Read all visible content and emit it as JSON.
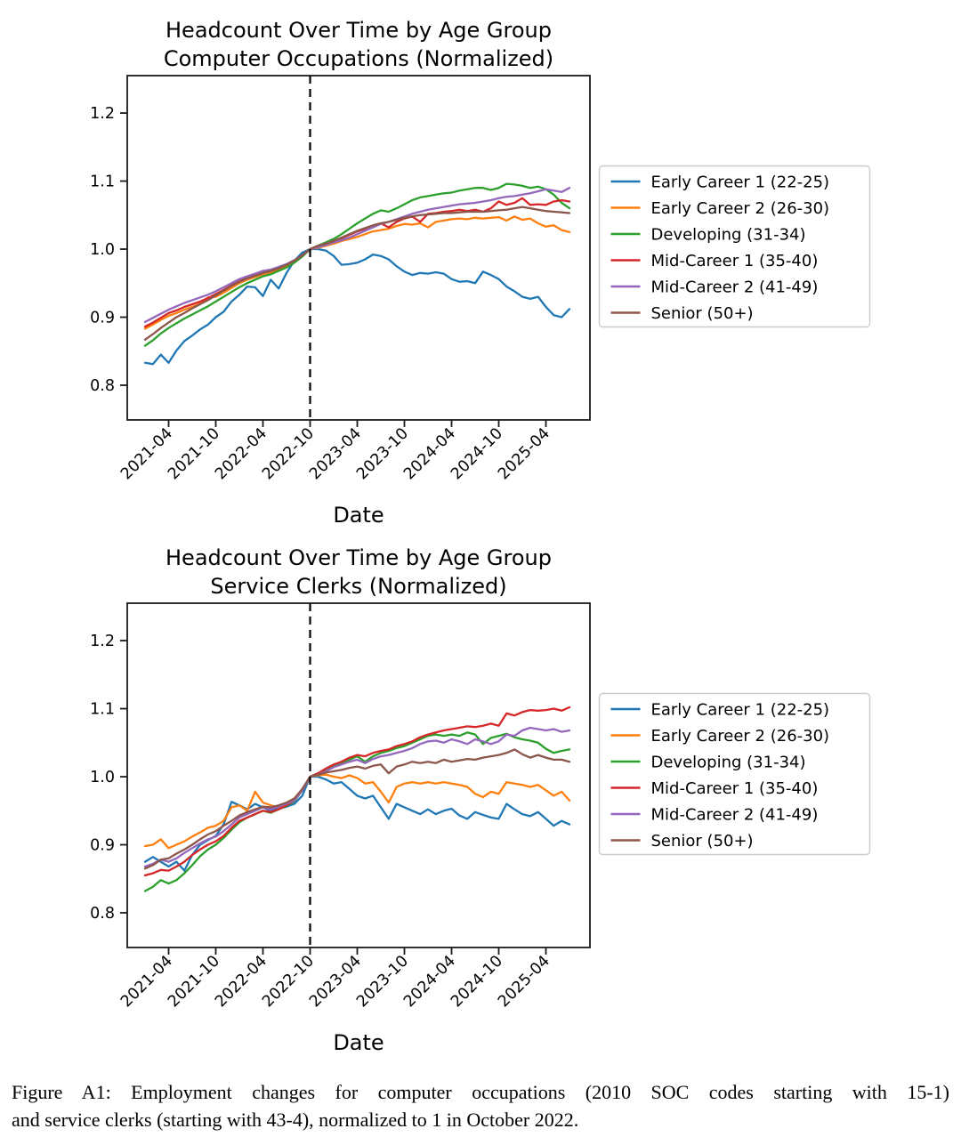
{
  "page": {
    "background": "#ffffff"
  },
  "caption": {
    "line1": "Figure A1: Employment changes for computer occupations (2010 SOC codes starting with 15-1)",
    "line2": "and service clerks (starting with 43-4), normalized to 1 in October 2022."
  },
  "chart_data": [
    {
      "type": "line",
      "title_lines": [
        "Headcount Over Time by Age Group",
        "Computer Occupations (Normalized)"
      ],
      "xlabel": "Date",
      "x_monthly_start": "2021-01",
      "x_monthly_end": "2025-07",
      "x_tick_labels": [
        "2021-04",
        "2021-10",
        "2022-04",
        "2022-10",
        "2023-04",
        "2023-10",
        "2024-04",
        "2024-10",
        "2025-04"
      ],
      "x_tick_month_indices": [
        3,
        9,
        15,
        21,
        27,
        33,
        39,
        45,
        51
      ],
      "y_ticks": [
        0.8,
        0.9,
        1.0,
        1.1,
        1.2
      ],
      "ylim": [
        0.749,
        1.255
      ],
      "grid": false,
      "legend_position": "right",
      "vline": {
        "date": "2022-10",
        "month_index": 21,
        "style": "dashed",
        "color": "#000000"
      },
      "series": [
        {
          "name": "Early Career 1 (22-25)",
          "color": "#1f77b4",
          "values": [
            0.833,
            0.831,
            0.845,
            0.833,
            0.851,
            0.865,
            0.873,
            0.882,
            0.889,
            0.9,
            0.908,
            0.923,
            0.933,
            0.945,
            0.944,
            0.931,
            0.955,
            0.942,
            0.965,
            0.983,
            0.995,
            1.0,
            1.0,
            0.998,
            0.99,
            0.977,
            0.978,
            0.98,
            0.985,
            0.992,
            0.99,
            0.985,
            0.975,
            0.967,
            0.962,
            0.965,
            0.964,
            0.966,
            0.964,
            0.956,
            0.952,
            0.953,
            0.95,
            0.967,
            0.962,
            0.956,
            0.945,
            0.938,
            0.93,
            0.927,
            0.93,
            0.915,
            0.903,
            0.9,
            0.912
          ]
        },
        {
          "name": "Early Career 2 (26-30)",
          "color": "#ff7f0e",
          "values": [
            0.883,
            0.889,
            0.896,
            0.902,
            0.906,
            0.911,
            0.915,
            0.92,
            0.929,
            0.93,
            0.936,
            0.943,
            0.95,
            0.955,
            0.959,
            0.963,
            0.966,
            0.97,
            0.975,
            0.981,
            0.99,
            1.0,
            1.002,
            1.005,
            1.008,
            1.012,
            1.015,
            1.018,
            1.022,
            1.026,
            1.028,
            1.03,
            1.034,
            1.037,
            1.036,
            1.038,
            1.032,
            1.04,
            1.042,
            1.044,
            1.045,
            1.044,
            1.046,
            1.045,
            1.046,
            1.047,
            1.042,
            1.048,
            1.043,
            1.045,
            1.038,
            1.033,
            1.035,
            1.028,
            1.025
          ]
        },
        {
          "name": "Developing (31-34)",
          "color": "#2ca02c",
          "values": [
            0.858,
            0.866,
            0.876,
            0.884,
            0.891,
            0.898,
            0.904,
            0.91,
            0.916,
            0.923,
            0.93,
            0.937,
            0.944,
            0.95,
            0.955,
            0.96,
            0.963,
            0.968,
            0.973,
            0.98,
            0.989,
            1.0,
            1.005,
            1.01,
            1.015,
            1.022,
            1.03,
            1.038,
            1.045,
            1.052,
            1.057,
            1.055,
            1.06,
            1.066,
            1.072,
            1.076,
            1.078,
            1.08,
            1.082,
            1.083,
            1.086,
            1.088,
            1.09,
            1.09,
            1.087,
            1.09,
            1.096,
            1.095,
            1.093,
            1.09,
            1.092,
            1.088,
            1.08,
            1.068,
            1.06
          ]
        },
        {
          "name": "Mid-Career 1 (35-40)",
          "color": "#d62728",
          "values": [
            0.886,
            0.892,
            0.899,
            0.906,
            0.91,
            0.915,
            0.919,
            0.923,
            0.928,
            0.934,
            0.94,
            0.947,
            0.953,
            0.958,
            0.962,
            0.966,
            0.968,
            0.972,
            0.977,
            0.983,
            0.991,
            1.0,
            1.004,
            1.008,
            1.012,
            1.016,
            1.021,
            1.026,
            1.03,
            1.035,
            1.038,
            1.032,
            1.04,
            1.045,
            1.048,
            1.04,
            1.052,
            1.053,
            1.055,
            1.056,
            1.058,
            1.056,
            1.058,
            1.055,
            1.06,
            1.07,
            1.065,
            1.068,
            1.075,
            1.065,
            1.066,
            1.065,
            1.07,
            1.072,
            1.07
          ]
        },
        {
          "name": "Mid-Career 2 (41-49)",
          "color": "#9467bd",
          "values": [
            0.893,
            0.899,
            0.905,
            0.911,
            0.916,
            0.921,
            0.925,
            0.929,
            0.933,
            0.938,
            0.944,
            0.95,
            0.956,
            0.96,
            0.964,
            0.968,
            0.97,
            0.974,
            0.978,
            0.984,
            0.991,
            1.0,
            1.003,
            1.006,
            1.01,
            1.013,
            1.017,
            1.022,
            1.027,
            1.032,
            1.037,
            1.04,
            1.044,
            1.048,
            1.052,
            1.055,
            1.058,
            1.06,
            1.062,
            1.064,
            1.066,
            1.067,
            1.068,
            1.07,
            1.072,
            1.075,
            1.077,
            1.078,
            1.08,
            1.082,
            1.085,
            1.088,
            1.086,
            1.084,
            1.09
          ]
        },
        {
          "name": "Senior (50+)",
          "color": "#8c564b",
          "values": [
            0.867,
            0.875,
            0.884,
            0.892,
            0.9,
            0.906,
            0.913,
            0.919,
            0.925,
            0.932,
            0.939,
            0.946,
            0.952,
            0.957,
            0.961,
            0.965,
            0.968,
            0.972,
            0.977,
            0.983,
            0.991,
            1.0,
            1.005,
            1.008,
            1.012,
            1.017,
            1.022,
            1.027,
            1.031,
            1.035,
            1.038,
            1.04,
            1.043,
            1.046,
            1.048,
            1.05,
            1.051,
            1.052,
            1.053,
            1.053,
            1.054,
            1.055,
            1.055,
            1.055,
            1.056,
            1.057,
            1.058,
            1.06,
            1.062,
            1.06,
            1.058,
            1.056,
            1.055,
            1.054,
            1.053
          ]
        }
      ]
    },
    {
      "type": "line",
      "title_lines": [
        "Headcount Over Time by Age Group",
        "Service Clerks (Normalized)"
      ],
      "xlabel": "Date",
      "x_monthly_start": "2021-01",
      "x_monthly_end": "2025-07",
      "x_tick_labels": [
        "2021-04",
        "2021-10",
        "2022-04",
        "2022-10",
        "2023-04",
        "2023-10",
        "2024-04",
        "2024-10",
        "2025-04"
      ],
      "x_tick_month_indices": [
        3,
        9,
        15,
        21,
        27,
        33,
        39,
        45,
        51
      ],
      "y_ticks": [
        0.8,
        0.9,
        1.0,
        1.1,
        1.2
      ],
      "ylim": [
        0.749,
        1.255
      ],
      "grid": false,
      "legend_position": "right",
      "vline": {
        "date": "2022-10",
        "month_index": 21,
        "style": "dashed",
        "color": "#000000"
      },
      "series": [
        {
          "name": "Early Career 1 (22-25)",
          "color": "#1f77b4",
          "values": [
            0.875,
            0.882,
            0.875,
            0.868,
            0.875,
            0.862,
            0.885,
            0.9,
            0.907,
            0.913,
            0.93,
            0.963,
            0.958,
            0.952,
            0.96,
            0.955,
            0.95,
            0.953,
            0.956,
            0.96,
            0.972,
            1.0,
            1.0,
            0.996,
            0.99,
            0.992,
            0.982,
            0.972,
            0.968,
            0.972,
            0.955,
            0.938,
            0.96,
            0.955,
            0.95,
            0.945,
            0.952,
            0.945,
            0.95,
            0.953,
            0.943,
            0.938,
            0.948,
            0.944,
            0.94,
            0.938,
            0.96,
            0.952,
            0.945,
            0.942,
            0.948,
            0.938,
            0.928,
            0.935,
            0.93
          ]
        },
        {
          "name": "Early Career 2 (26-30)",
          "color": "#ff7f0e",
          "values": [
            0.898,
            0.9,
            0.908,
            0.895,
            0.9,
            0.905,
            0.912,
            0.918,
            0.925,
            0.928,
            0.935,
            0.955,
            0.958,
            0.95,
            0.978,
            0.962,
            0.958,
            0.955,
            0.962,
            0.968,
            0.98,
            1.0,
            1.002,
            1.003,
            1.0,
            0.998,
            1.002,
            0.998,
            0.99,
            0.992,
            0.978,
            0.962,
            0.985,
            0.99,
            0.992,
            0.99,
            0.992,
            0.99,
            0.992,
            0.99,
            0.988,
            0.985,
            0.975,
            0.97,
            0.978,
            0.975,
            0.992,
            0.99,
            0.988,
            0.985,
            0.988,
            0.98,
            0.972,
            0.978,
            0.965
          ]
        },
        {
          "name": "Developing (31-34)",
          "color": "#2ca02c",
          "values": [
            0.832,
            0.838,
            0.848,
            0.843,
            0.848,
            0.858,
            0.87,
            0.883,
            0.893,
            0.9,
            0.91,
            0.922,
            0.933,
            0.94,
            0.945,
            0.95,
            0.947,
            0.952,
            0.957,
            0.964,
            0.98,
            1.0,
            1.005,
            1.01,
            1.016,
            1.02,
            1.025,
            1.03,
            1.022,
            1.03,
            1.035,
            1.038,
            1.042,
            1.045,
            1.05,
            1.055,
            1.06,
            1.062,
            1.06,
            1.062,
            1.06,
            1.065,
            1.062,
            1.048,
            1.057,
            1.06,
            1.063,
            1.058,
            1.055,
            1.053,
            1.05,
            1.041,
            1.035,
            1.038,
            1.04
          ]
        },
        {
          "name": "Mid-Career 1 (35-40)",
          "color": "#d62728",
          "values": [
            0.855,
            0.858,
            0.863,
            0.862,
            0.868,
            0.875,
            0.885,
            0.893,
            0.9,
            0.905,
            0.913,
            0.925,
            0.935,
            0.94,
            0.945,
            0.95,
            0.948,
            0.952,
            0.958,
            0.965,
            0.98,
            1.0,
            1.005,
            1.012,
            1.018,
            1.022,
            1.028,
            1.032,
            1.03,
            1.035,
            1.038,
            1.04,
            1.045,
            1.048,
            1.052,
            1.058,
            1.062,
            1.065,
            1.068,
            1.07,
            1.072,
            1.074,
            1.073,
            1.075,
            1.078,
            1.075,
            1.093,
            1.09,
            1.095,
            1.098,
            1.097,
            1.098,
            1.1,
            1.097,
            1.102
          ]
        },
        {
          "name": "Mid-Career 2 (41-49)",
          "color": "#9467bd",
          "values": [
            0.868,
            0.872,
            0.878,
            0.875,
            0.88,
            0.888,
            0.895,
            0.902,
            0.908,
            0.912,
            0.92,
            0.93,
            0.94,
            0.945,
            0.95,
            0.955,
            0.952,
            0.956,
            0.96,
            0.965,
            0.98,
            1.0,
            1.003,
            1.008,
            1.014,
            1.018,
            1.022,
            1.025,
            1.02,
            1.026,
            1.03,
            1.032,
            1.035,
            1.038,
            1.042,
            1.048,
            1.052,
            1.053,
            1.05,
            1.055,
            1.052,
            1.048,
            1.055,
            1.052,
            1.048,
            1.052,
            1.062,
            1.06,
            1.068,
            1.072,
            1.07,
            1.068,
            1.07,
            1.066,
            1.068
          ]
        },
        {
          "name": "Senior (50+)",
          "color": "#8c564b",
          "values": [
            0.865,
            0.87,
            0.878,
            0.88,
            0.887,
            0.893,
            0.9,
            0.908,
            0.915,
            0.92,
            0.928,
            0.935,
            0.943,
            0.948,
            0.952,
            0.956,
            0.955,
            0.958,
            0.962,
            0.968,
            0.982,
            1.0,
            1.003,
            1.006,
            1.008,
            1.01,
            1.013,
            1.015,
            1.012,
            1.016,
            1.018,
            1.005,
            1.015,
            1.018,
            1.022,
            1.02,
            1.022,
            1.02,
            1.025,
            1.022,
            1.024,
            1.026,
            1.025,
            1.028,
            1.03,
            1.032,
            1.035,
            1.04,
            1.033,
            1.028,
            1.032,
            1.028,
            1.025,
            1.025,
            1.022
          ]
        }
      ]
    }
  ]
}
